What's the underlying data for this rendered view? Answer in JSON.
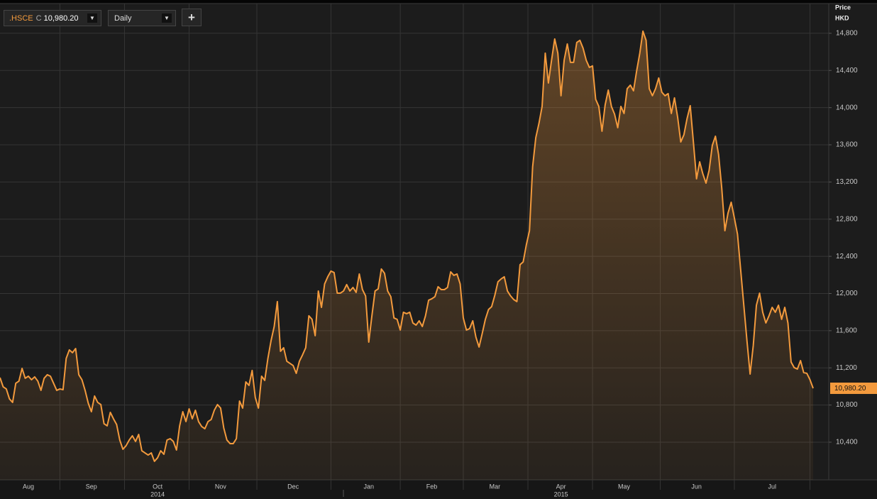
{
  "header": {
    "symbol": ".HSCE",
    "price_type": "C",
    "price": "10,980.20",
    "interval": "Daily",
    "add_button": "+"
  },
  "chart_data": {
    "type": "line",
    "fill_area": true,
    "y_axis_label": "Price",
    "y_axis_unit": "HKD",
    "y_axis_side": "right",
    "grid": true,
    "ylim": [
      9995,
      15120
    ],
    "yticks": [
      {
        "value": 10400,
        "label": "10,400"
      },
      {
        "value": 10800,
        "label": "10,800"
      },
      {
        "value": 11200,
        "label": "11,200"
      },
      {
        "value": 11600,
        "label": "11,600"
      },
      {
        "value": 12000,
        "label": "12,000"
      },
      {
        "value": 12400,
        "label": "12,400"
      },
      {
        "value": 12800,
        "label": "12,800"
      },
      {
        "value": 13200,
        "label": "13,200"
      },
      {
        "value": 13600,
        "label": "13,600"
      },
      {
        "value": 14000,
        "label": "14,000"
      },
      {
        "value": 14400,
        "label": "14,400"
      },
      {
        "value": 14800,
        "label": "14,800"
      }
    ],
    "year_labels": {
      "Oct": "2014",
      "Apr": "2015"
    },
    "categories": [
      null,
      null,
      null,
      null,
      null,
      null,
      null,
      null,
      null,
      "Aug",
      null,
      null,
      null,
      null,
      null,
      null,
      null,
      null,
      null,
      null,
      null,
      null,
      null,
      null,
      null,
      null,
      null,
      null,
      null,
      "Sep",
      null,
      null,
      null,
      null,
      null,
      null,
      null,
      null,
      null,
      null,
      null,
      null,
      null,
      null,
      null,
      null,
      null,
      null,
      null,
      null,
      "Oct",
      null,
      null,
      null,
      null,
      null,
      null,
      null,
      null,
      null,
      null,
      null,
      null,
      null,
      null,
      null,
      null,
      null,
      null,
      null,
      "Nov",
      null,
      null,
      null,
      null,
      null,
      null,
      null,
      null,
      null,
      null,
      null,
      null,
      null,
      null,
      null,
      null,
      null,
      null,
      null,
      null,
      null,
      null,
      "Dec",
      null,
      null,
      null,
      null,
      null,
      null,
      null,
      null,
      null,
      null,
      null,
      null,
      null,
      null,
      null,
      null,
      null,
      null,
      null,
      null,
      null,
      null,
      null,
      "Jan",
      null,
      null,
      null,
      null,
      null,
      null,
      null,
      null,
      null,
      null,
      null,
      null,
      null,
      null,
      null,
      null,
      null,
      null,
      null,
      "Feb",
      null,
      null,
      null,
      null,
      null,
      null,
      null,
      null,
      null,
      null,
      null,
      null,
      null,
      null,
      null,
      null,
      null,
      null,
      null,
      "Mar",
      null,
      null,
      null,
      null,
      null,
      null,
      null,
      null,
      null,
      null,
      null,
      null,
      null,
      null,
      null,
      null,
      null,
      null,
      null,
      null,
      "Apr",
      null,
      null,
      null,
      null,
      null,
      null,
      null,
      null,
      null,
      null,
      null,
      null,
      null,
      null,
      null,
      null,
      null,
      null,
      null,
      "May",
      null,
      null,
      null,
      null,
      null,
      null,
      null,
      null,
      null,
      null,
      null,
      null,
      null,
      null,
      null,
      null,
      null,
      null,
      null,
      null,
      null,
      null,
      "Jun",
      null,
      null,
      null,
      null,
      null,
      null,
      null,
      null,
      null,
      null,
      null,
      null,
      null,
      null,
      null,
      null,
      null,
      null,
      null,
      null,
      null,
      null,
      null,
      "Jul",
      null,
      null,
      null,
      null,
      null,
      null,
      null,
      null,
      null,
      null,
      null,
      null,
      null
    ],
    "series": [
      {
        "name": ".HSCE",
        "color": "#f39a3d",
        "label_color": "#f39a3d",
        "values": [
          11095,
          10996,
          10973,
          10866,
          10828,
          11034,
          11057,
          11194,
          11088,
          11110,
          11072,
          11103,
          11057,
          10958,
          11088,
          11126,
          11110,
          11034,
          10958,
          10973,
          10965,
          11301,
          11393,
          11363,
          11408,
          11126,
          11072,
          10958,
          10820,
          10728,
          10897,
          10828,
          10805,
          10599,
          10576,
          10721,
          10652,
          10591,
          10423,
          10324,
          10362,
          10423,
          10469,
          10408,
          10484,
          10308,
          10285,
          10262,
          10285,
          10194,
          10232,
          10308,
          10270,
          10423,
          10438,
          10408,
          10316,
          10576,
          10728,
          10622,
          10759,
          10652,
          10744,
          10622,
          10568,
          10545,
          10622,
          10644,
          10744,
          10805,
          10767,
          10553,
          10423,
          10385,
          10385,
          10438,
          10843,
          10767,
          11049,
          11011,
          11172,
          10881,
          10767,
          11110,
          11065,
          11301,
          11492,
          11645,
          11913,
          11378,
          11416,
          11271,
          11248,
          11225,
          11141,
          11271,
          11340,
          11416,
          11760,
          11722,
          11546,
          12027,
          11851,
          12103,
          12180,
          12241,
          12226,
          12004,
          12004,
          12027,
          12096,
          12027,
          12065,
          12012,
          12210,
          12042,
          11974,
          11477,
          11760,
          12027,
          12050,
          12264,
          12218,
          12027,
          11966,
          11737,
          11722,
          11607,
          11798,
          11783,
          11798,
          11683,
          11660,
          11706,
          11645,
          11760,
          11928,
          11943,
          11966,
          12073,
          12042,
          12042,
          12065,
          12233,
          12195,
          12210,
          12103,
          11737,
          11607,
          11622,
          11706,
          11531,
          11424,
          11569,
          11722,
          11828,
          11859,
          11981,
          12126,
          12157,
          12180,
          12027,
          11974,
          11935,
          11913,
          12310,
          12340,
          12524,
          12676,
          13364,
          13677,
          13830,
          14013,
          14586,
          14265,
          14510,
          14739,
          14586,
          14128,
          14510,
          14685,
          14487,
          14487,
          14701,
          14724,
          14640,
          14510,
          14433,
          14449,
          14090,
          14013,
          13746,
          14029,
          14189,
          14013,
          13929,
          13784,
          14013,
          13937,
          14204,
          14242,
          14181,
          14395,
          14586,
          14823,
          14724,
          14204,
          14128,
          14204,
          14319,
          14166,
          14128,
          14151,
          13937,
          14105,
          13899,
          13631,
          13708,
          13883,
          14021,
          13631,
          13234,
          13417,
          13288,
          13188,
          13326,
          13593,
          13692,
          13494,
          13135,
          12676,
          12867,
          12982,
          12814,
          12638,
          12256,
          11874,
          11492,
          11133,
          11439,
          11874,
          12004,
          11798,
          11683,
          11760,
          11851,
          11798,
          11874,
          11722,
          11851,
          11683,
          11263,
          11202,
          11187,
          11278,
          11149,
          11141,
          11072,
          10980.2
        ],
        "value_labels": [
          null,
          null,
          null,
          null,
          null,
          null,
          null,
          null,
          null,
          null,
          null,
          null,
          null,
          null,
          null,
          null,
          null,
          null,
          null,
          null,
          null,
          null,
          null,
          null,
          null,
          null,
          null,
          null,
          null,
          null,
          null,
          null,
          null,
          null,
          null,
          null,
          null,
          null,
          null,
          null,
          null,
          null,
          null,
          null,
          null,
          null,
          null,
          null,
          null,
          null,
          null,
          null,
          null,
          null,
          null,
          null,
          null,
          null,
          null,
          null,
          null,
          null,
          null,
          null,
          null,
          null,
          null,
          null,
          null,
          null,
          null,
          null,
          null,
          null,
          null,
          null,
          null,
          null,
          null,
          null,
          null,
          null,
          null,
          null,
          null,
          null,
          null,
          null,
          null,
          null,
          null,
          null,
          null,
          null,
          null,
          null,
          null,
          null,
          null,
          null,
          null,
          null,
          null,
          null,
          null,
          null,
          null,
          null,
          null,
          null,
          null,
          null,
          null,
          null,
          null,
          null,
          null,
          null,
          null,
          null,
          null,
          null,
          null,
          null,
          null,
          null,
          null,
          null,
          null,
          null,
          null,
          null,
          null,
          null,
          null,
          null,
          null,
          null,
          null,
          null,
          null,
          null,
          null,
          null,
          null,
          null,
          null,
          null,
          null,
          null,
          null,
          null,
          null,
          null,
          null,
          null,
          null,
          null,
          null,
          null,
          null,
          null,
          null,
          null,
          null,
          null,
          null,
          null,
          null,
          null,
          null,
          null,
          null,
          null,
          null,
          null,
          null,
          null,
          null,
          null,
          null,
          null,
          null,
          null,
          null,
          null,
          null,
          null,
          null,
          null,
          null,
          null,
          null,
          null,
          null,
          null,
          null,
          null,
          null,
          null,
          null,
          null,
          null,
          null,
          null,
          null,
          null,
          null,
          null,
          null,
          null,
          null,
          null,
          null,
          null,
          null,
          null,
          null,
          null,
          null,
          null,
          null,
          null,
          null,
          null,
          null,
          null,
          null,
          null,
          null,
          null,
          null,
          null,
          null,
          null,
          null,
          null,
          null,
          null,
          null,
          null,
          null,
          null,
          null,
          null,
          null,
          null,
          null,
          null,
          null,
          null,
          null,
          null,
          null,
          null,
          null,
          null,
          null,
          "10,980.20"
        ]
      }
    ]
  }
}
